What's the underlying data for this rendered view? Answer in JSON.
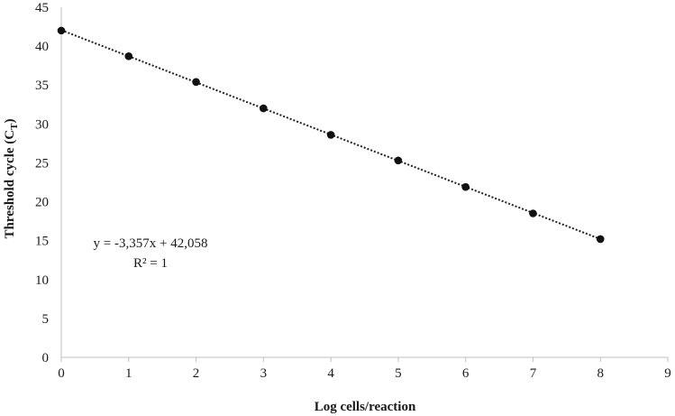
{
  "chart_data": {
    "type": "scatter",
    "title": "",
    "xlabel": "Log cells/reaction",
    "ylabel_main": "Threshold cycle (C",
    "ylabel_sub": "T",
    "ylabel_close": ")",
    "xlim": [
      0,
      9
    ],
    "ylim": [
      0,
      45
    ],
    "x_ticks": [
      "0",
      "1",
      "2",
      "3",
      "4",
      "5",
      "6",
      "7",
      "8",
      "9"
    ],
    "y_ticks": [
      "0",
      "5",
      "10",
      "15",
      "20",
      "25",
      "30",
      "35",
      "40",
      "45"
    ],
    "grid": false,
    "legend": "none",
    "series": [
      {
        "x": [
          0,
          1,
          2,
          3,
          4,
          5,
          6,
          7,
          8
        ],
        "y": [
          42.0,
          38.7,
          35.4,
          32.0,
          28.6,
          25.3,
          21.9,
          18.5,
          15.2
        ]
      }
    ],
    "trendline": {
      "style": "dotted",
      "slope": -3.357,
      "intercept": 42.058,
      "x_range": [
        0,
        8
      ]
    },
    "annotations": [
      "y = -3,357x + 42,058",
      "R² = 1"
    ],
    "colors": {
      "marker": "#111111",
      "trendline": "#222222",
      "axis": "#bfbfbf",
      "text": "#1a1a1a"
    }
  }
}
